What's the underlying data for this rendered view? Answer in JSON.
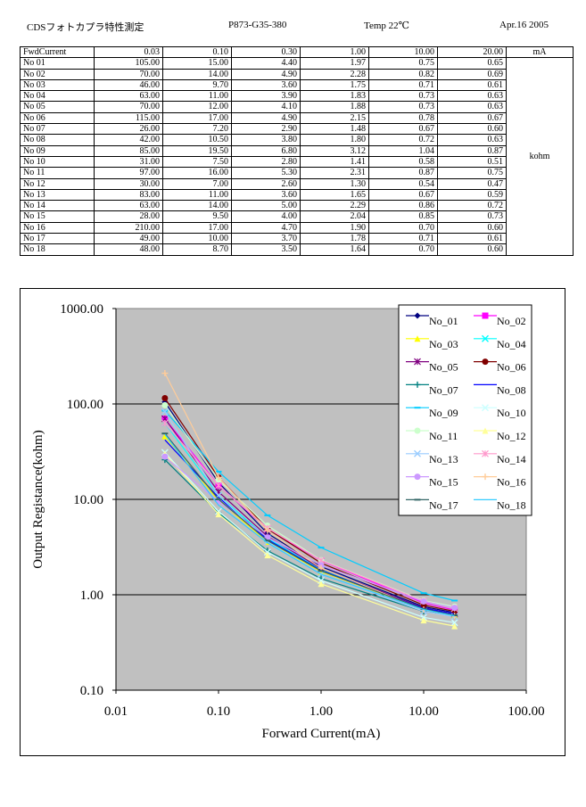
{
  "header": {
    "title": "CDSフォトカプラ特性測定",
    "part": "P873-G35-380",
    "temp": "Temp 22℃",
    "date": "Apr.16 2005"
  },
  "table": {
    "corner": "FwdCurrent",
    "currents": [
      "0.03",
      "0.10",
      "0.30",
      "1.00",
      "10.00",
      "20.00"
    ],
    "current_unit": "mA",
    "resistance_unit": "kohm",
    "rows": [
      {
        "name": "No 01",
        "values": [
          "105.00",
          "15.00",
          "4.40",
          "1.97",
          "0.75",
          "0.65"
        ]
      },
      {
        "name": "No 02",
        "values": [
          "70.00",
          "14.00",
          "4.90",
          "2.28",
          "0.82",
          "0.69"
        ]
      },
      {
        "name": "No 03",
        "values": [
          "46.00",
          "9.70",
          "3.60",
          "1.75",
          "0.71",
          "0.61"
        ]
      },
      {
        "name": "No 04",
        "values": [
          "63.00",
          "11.00",
          "3.90",
          "1.83",
          "0.73",
          "0.63"
        ]
      },
      {
        "name": "No 05",
        "values": [
          "70.00",
          "12.00",
          "4.10",
          "1.88",
          "0.73",
          "0.63"
        ]
      },
      {
        "name": "No 06",
        "values": [
          "115.00",
          "17.00",
          "4.90",
          "2.15",
          "0.78",
          "0.67"
        ]
      },
      {
        "name": "No 07",
        "values": [
          "26.00",
          "7.20",
          "2.90",
          "1.48",
          "0.67",
          "0.60"
        ]
      },
      {
        "name": "No 08",
        "values": [
          "42.00",
          "10.50",
          "3.80",
          "1.80",
          "0.72",
          "0.63"
        ]
      },
      {
        "name": "No 09",
        "values": [
          "85.00",
          "19.50",
          "6.80",
          "3.12",
          "1.04",
          "0.87"
        ]
      },
      {
        "name": "No 10",
        "values": [
          "31.00",
          "7.50",
          "2.80",
          "1.41",
          "0.58",
          "0.51"
        ]
      },
      {
        "name": "No 11",
        "values": [
          "97.00",
          "16.00",
          "5.30",
          "2.31",
          "0.87",
          "0.75"
        ]
      },
      {
        "name": "No 12",
        "values": [
          "30.00",
          "7.00",
          "2.60",
          "1.30",
          "0.54",
          "0.47"
        ]
      },
      {
        "name": "No 13",
        "values": [
          "83.00",
          "11.00",
          "3.60",
          "1.65",
          "0.67",
          "0.59"
        ]
      },
      {
        "name": "No 14",
        "values": [
          "63.00",
          "14.00",
          "5.00",
          "2.29",
          "0.86",
          "0.72"
        ]
      },
      {
        "name": "No 15",
        "values": [
          "28.00",
          "9.50",
          "4.00",
          "2.04",
          "0.85",
          "0.73"
        ]
      },
      {
        "name": "No 16",
        "values": [
          "210.00",
          "17.00",
          "4.70",
          "1.90",
          "0.70",
          "0.60"
        ]
      },
      {
        "name": "No 17",
        "values": [
          "49.00",
          "10.00",
          "3.70",
          "1.78",
          "0.71",
          "0.61"
        ]
      },
      {
        "name": "No 18",
        "values": [
          "48.00",
          "8.70",
          "3.50",
          "1.64",
          "0.70",
          "0.60"
        ]
      }
    ]
  },
  "chart_data": {
    "type": "line",
    "xlabel": "Forward Current(mA)",
    "ylabel": "Output Registance(kohm)",
    "xscale": "log",
    "yscale": "log",
    "xlim": [
      0.01,
      100
    ],
    "ylim": [
      0.1,
      1000
    ],
    "xticks": [
      "0.01",
      "0.10",
      "1.00",
      "10.00",
      "100.00"
    ],
    "yticks": [
      "1000.00",
      "100.00",
      "10.00",
      "1.00",
      "0.10"
    ],
    "grid": "horizontal",
    "plot_background": "#c0c0c0",
    "legend_position": "top-right",
    "x": [
      0.03,
      0.1,
      0.3,
      1,
      10,
      20
    ],
    "series": [
      {
        "name": "No_01",
        "color": "#000080",
        "marker": "diamond",
        "values": [
          105,
          15,
          4.4,
          1.97,
          0.75,
          0.65
        ]
      },
      {
        "name": "No_02",
        "color": "#ff00ff",
        "marker": "square",
        "values": [
          70,
          14,
          4.9,
          2.28,
          0.82,
          0.69
        ]
      },
      {
        "name": "No_03",
        "color": "#ffff00",
        "marker": "triangle",
        "values": [
          46,
          9.7,
          3.6,
          1.75,
          0.71,
          0.61
        ]
      },
      {
        "name": "No_04",
        "color": "#00ffff",
        "marker": "x",
        "values": [
          63,
          11,
          3.9,
          1.83,
          0.73,
          0.63
        ]
      },
      {
        "name": "No_05",
        "color": "#800080",
        "marker": "star",
        "values": [
          70,
          12,
          4.1,
          1.88,
          0.73,
          0.63
        ]
      },
      {
        "name": "No_06",
        "color": "#800000",
        "marker": "circle",
        "values": [
          115,
          17,
          4.9,
          2.15,
          0.78,
          0.67
        ]
      },
      {
        "name": "No_07",
        "color": "#008080",
        "marker": "plus",
        "values": [
          26,
          7.2,
          2.9,
          1.48,
          0.67,
          0.6
        ]
      },
      {
        "name": "No_08",
        "color": "#0000ff",
        "marker": "none",
        "values": [
          42,
          10.5,
          3.8,
          1.8,
          0.72,
          0.63
        ]
      },
      {
        "name": "No_09",
        "color": "#00ccff",
        "marker": "dash",
        "values": [
          85,
          19.5,
          6.8,
          3.12,
          1.04,
          0.87
        ]
      },
      {
        "name": "No_10",
        "color": "#ccffff",
        "marker": "x",
        "values": [
          31,
          7.5,
          2.8,
          1.41,
          0.58,
          0.51
        ]
      },
      {
        "name": "No_11",
        "color": "#ccffcc",
        "marker": "circle",
        "values": [
          97,
          16,
          5.3,
          2.31,
          0.87,
          0.75
        ]
      },
      {
        "name": "No_12",
        "color": "#ffff99",
        "marker": "triangle",
        "values": [
          30,
          7,
          2.6,
          1.3,
          0.54,
          0.47
        ]
      },
      {
        "name": "No_13",
        "color": "#99ccff",
        "marker": "x",
        "values": [
          83,
          11,
          3.6,
          1.65,
          0.67,
          0.59
        ]
      },
      {
        "name": "No_14",
        "color": "#ff99cc",
        "marker": "star",
        "values": [
          63,
          14,
          5,
          2.29,
          0.86,
          0.72
        ]
      },
      {
        "name": "No_15",
        "color": "#cc99ff",
        "marker": "circle",
        "values": [
          28,
          9.5,
          4,
          2.04,
          0.85,
          0.73
        ]
      },
      {
        "name": "No_16",
        "color": "#ffcc99",
        "marker": "plus",
        "values": [
          210,
          17,
          4.7,
          1.9,
          0.7,
          0.6
        ]
      },
      {
        "name": "No_17",
        "color": "#336666",
        "marker": "dash",
        "values": [
          49,
          10,
          3.7,
          1.78,
          0.71,
          0.61
        ]
      },
      {
        "name": "No_18",
        "color": "#33ccff",
        "marker": "none",
        "values": [
          48,
          8.7,
          3.5,
          1.64,
          0.7,
          0.6
        ]
      }
    ]
  }
}
